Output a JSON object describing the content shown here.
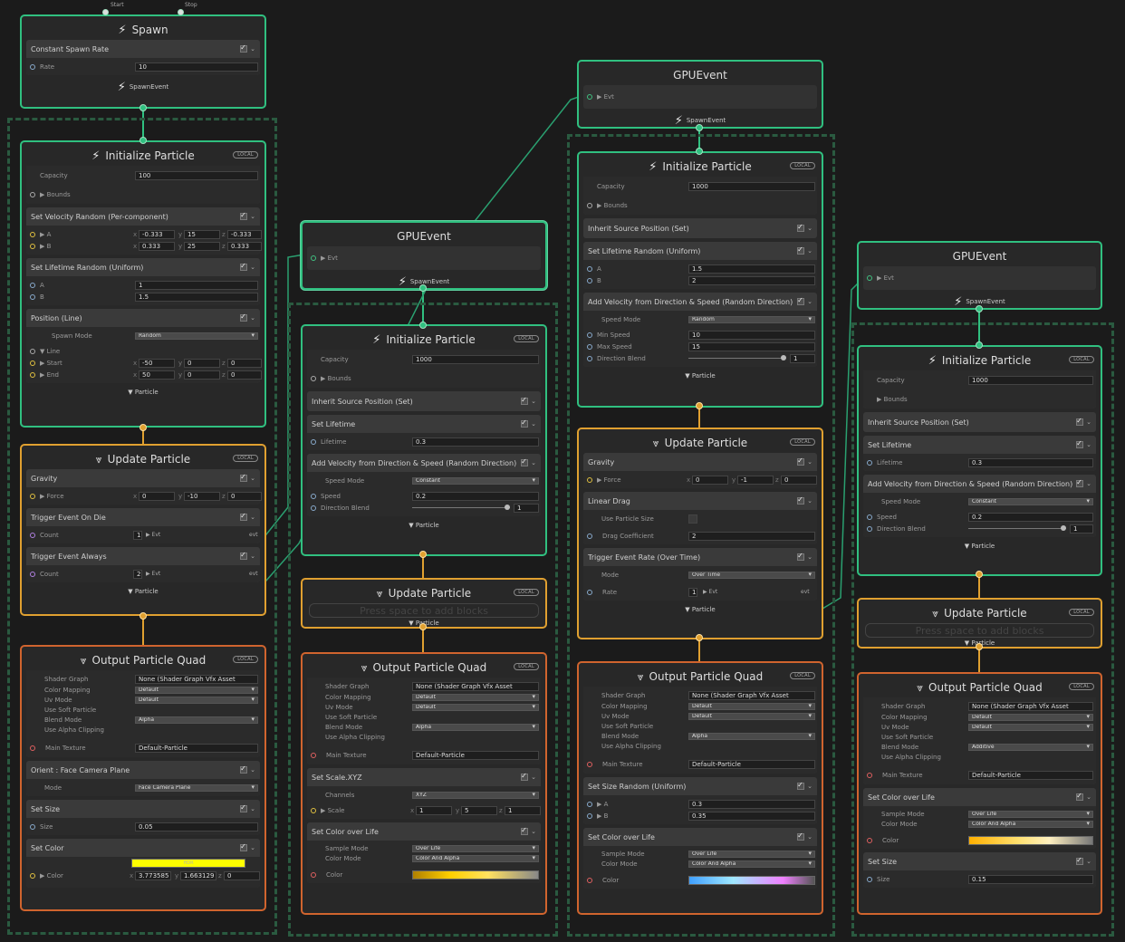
{
  "labels": {
    "local": "LOCAL",
    "particle": "▼ Particle",
    "spawn_event": "SpawnEvent",
    "evt": "Evt",
    "evt_out": "evt",
    "start": "Start",
    "stop": "Stop",
    "empty": "Press space to add blocks",
    "hdr": "HDR"
  },
  "spawn": {
    "title": "Spawn",
    "block": "Constant Spawn Rate",
    "rate_label": "Rate",
    "rate": "10"
  },
  "gpu_event": {
    "title": "GPUEvent"
  },
  "init": {
    "title": "Initialize Particle",
    "capacity_label": "Capacity",
    "bounds_label": "▶ Bounds"
  },
  "col1": {
    "init": {
      "capacity": "100",
      "vel_title": "Set Velocity Random (Per-component)",
      "A": "▶ A",
      "B": "▶ B",
      "a": [
        "-0.333",
        "15",
        "-0.333"
      ],
      "b": [
        "0.333",
        "25",
        "0.333"
      ],
      "life_title": "Set Lifetime Random (Uniform)",
      "lA": "1",
      "lB": "1.5",
      "pos_title": "Position (Line)",
      "spawn_mode_label": "Spawn Mode",
      "spawn_mode": "Random",
      "line": "▼ Line",
      "start": "▶ Start",
      "end": "▶ End",
      "s": [
        "-50",
        "0",
        "0"
      ],
      "e": [
        "50",
        "0",
        "0"
      ]
    },
    "update": {
      "title": "Update Particle",
      "gravity": "Gravity",
      "force": "▶ Force",
      "f": [
        "0",
        "-10",
        "0"
      ],
      "trig_die": "Trigger Event On Die",
      "count": "Count",
      "c1": "1",
      "trig_always": "Trigger Event Always",
      "c2": "2"
    },
    "output": {
      "title": "Output Particle Quad",
      "shader_graph": "Shader Graph",
      "shader": "None (Shader Graph Vfx Asset",
      "color_mapping": "Color Mapping",
      "default": "Default",
      "uv_mode": "Uv Mode",
      "soft": "Use Soft Particle",
      "blend": "Blend Mode",
      "blend_val": "Alpha",
      "clip": "Use Alpha Clipping",
      "main_tex": "Main Texture",
      "tex": "Default-Particle",
      "orient": "Orient : Face Camera Plane",
      "mode": "Mode",
      "mode_val": "Face Camera Plane",
      "set_size": "Set Size",
      "size": "Size",
      "size_val": "0.05",
      "set_color": "Set Color",
      "color": "▶ Color",
      "rgb": [
        "3.773585",
        "1.663129",
        "0"
      ]
    }
  },
  "col2": {
    "init": {
      "capacity": "1000",
      "inherit": "Inherit Source Position (Set)",
      "set_life": "Set Lifetime",
      "lifetime": "Lifetime",
      "lifetime_val": "0.3",
      "addvel": "Add Velocity from Direction & Speed (Random Direction)",
      "speed_mode": "Speed Mode",
      "speed_mode_val": "Constant",
      "speed": "Speed",
      "speed_val": "0.2",
      "dir_blend": "Direction Blend",
      "dir_val": "1"
    },
    "update": {
      "title": "Update Particle"
    },
    "output": {
      "title": "Output Particle Quad",
      "blend_val": "Alpha",
      "scale_title": "Set Scale.XYZ",
      "channels": "Channels",
      "channels_val": "XYZ",
      "scale": "▶ Scale",
      "sc": [
        "1",
        "5",
        "1"
      ],
      "col_life": "Set Color over Life",
      "sample_mode": "Sample Mode",
      "sample_val": "Over Life",
      "color_mode": "Color Mode",
      "color_mode_val": "Color And Alpha",
      "color": "Color"
    }
  },
  "col3": {
    "init": {
      "capacity": "1000",
      "inherit": "Inherit Source Position (Set)",
      "life_rand": "Set Lifetime Random (Uniform)",
      "A": "A",
      "B": "B",
      "lA": "1.5",
      "lB": "2",
      "addvel": "Add Velocity from Direction & Speed (Random Direction)",
      "speed_mode": "Speed Mode",
      "speed_mode_val": "Random",
      "min_speed": "Min Speed",
      "min_val": "10",
      "max_speed": "Max Speed",
      "max_val": "15",
      "dir_blend": "Direction Blend",
      "dir_val": "1"
    },
    "update": {
      "title": "Update Particle",
      "gravity": "Gravity",
      "force": "▶ Force",
      "f": [
        "0",
        "-1",
        "0"
      ],
      "drag": "Linear Drag",
      "use_size": "Use Particle Size",
      "drag_coef": "Drag Coefficient",
      "drag_val": "2",
      "trig_rate": "Trigger Event Rate (Over Time)",
      "mode": "Mode",
      "mode_val": "Over Time",
      "rate": "Rate",
      "rate_val": "1"
    },
    "output": {
      "title": "Output Particle Quad",
      "blend_val": "Alpha",
      "size_rand": "Set Size Random (Uniform)",
      "A": "▶ A",
      "B": "▶ B",
      "sA": "0.3",
      "sB": "0.35",
      "col_life": "Set Color over Life",
      "sample_val": "Over Life",
      "color_mode_val": "Color And Alpha",
      "color": "Color"
    }
  },
  "col4": {
    "init": {
      "capacity": "1000",
      "inherit": "Inherit Source Position (Set)",
      "set_life": "Set Lifetime",
      "lifetime": "Lifetime",
      "lifetime_val": "0.3",
      "addvel": "Add Velocity from Direction & Speed (Random Direction)",
      "speed_mode": "Speed Mode",
      "speed_mode_val": "Constant",
      "speed": "Speed",
      "speed_val": "0.2",
      "dir_blend": "Direction Blend",
      "dir_val": "1"
    },
    "update": {
      "title": "Update Particle"
    },
    "output": {
      "title": "Output Particle Quad",
      "blend_val": "Additive",
      "col_life": "Set Color over Life",
      "sample_val": "Over Life",
      "color_mode_val": "Color And Alpha",
      "color": "Color",
      "set_size": "Set Size",
      "size": "Size",
      "size_val": "0.15"
    }
  },
  "colors": {
    "spawn": "#30c080",
    "update": "#e0a030",
    "output": "#d0642e",
    "wire": "#2aa070"
  }
}
